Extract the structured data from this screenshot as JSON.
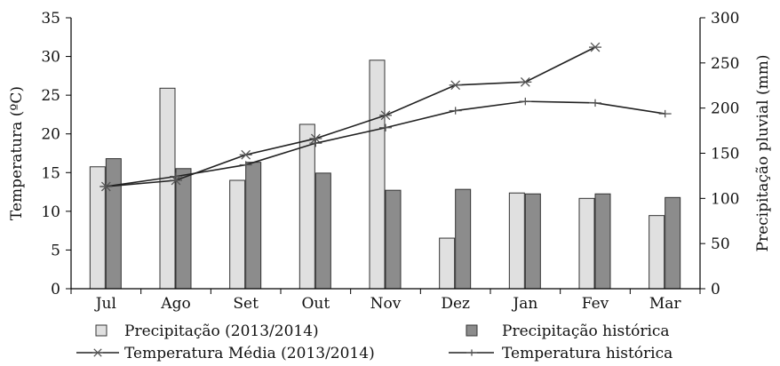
{
  "chart_data": {
    "type": "bar+line",
    "categories": [
      "Jul",
      "Ago",
      "Set",
      "Out",
      "Nov",
      "Dez",
      "Jan",
      "Fev",
      "Mar"
    ],
    "left_axis": {
      "label": "Temperatura (ºC)",
      "min": 0,
      "max": 35,
      "ticks": [
        0,
        5,
        10,
        15,
        20,
        25,
        30,
        35
      ]
    },
    "right_axis": {
      "label": "Precipitação pluvial (mm)",
      "min": 0,
      "max": 300,
      "ticks": [
        0,
        50,
        100,
        150,
        200,
        250,
        300
      ]
    },
    "bar_series": [
      {
        "name": "Precipitação (2013/2014)",
        "axis": "right",
        "color": "#e0e0e0",
        "values": [
          135,
          222,
          120,
          182,
          253,
          56,
          106,
          100,
          81
        ]
      },
      {
        "name": "Precipitação histórica",
        "axis": "right",
        "color": "#8c8c8c",
        "values": [
          144,
          133,
          140,
          128,
          109,
          110,
          105,
          105,
          101
        ]
      }
    ],
    "line_series": [
      {
        "name": "Temperatura Média (2013/2014)",
        "axis": "left",
        "marker": "star",
        "color": "#333333",
        "values": [
          13.2,
          14.0,
          17.3,
          19.4,
          22.4,
          26.3,
          26.7,
          31.2,
          null
        ]
      },
      {
        "name": "Temperatura histórica",
        "axis": "left",
        "marker": "plus",
        "color": "#333333",
        "values": [
          13.2,
          14.5,
          16.0,
          18.8,
          20.8,
          23.0,
          24.2,
          24.0,
          22.6
        ]
      }
    ],
    "grid": false,
    "legend_position": "bottom"
  }
}
